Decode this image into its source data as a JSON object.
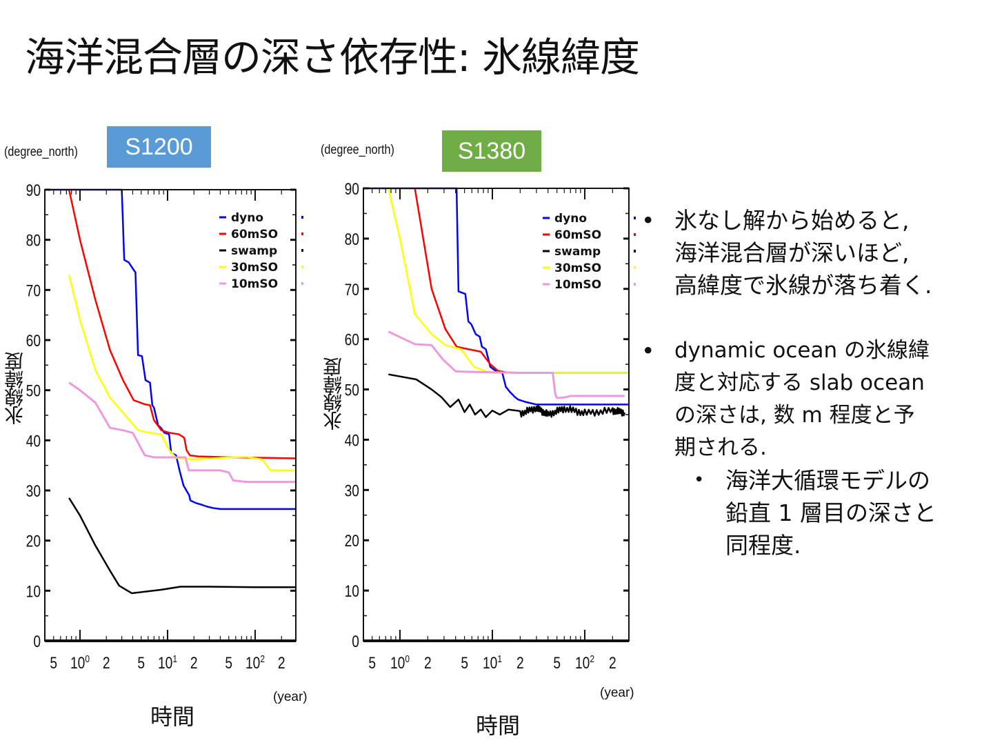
{
  "page": {
    "title": "海洋混合層の深さ依存性: 氷線緯度"
  },
  "colors": {
    "dyno": "#0000ff",
    "60mSO": "#ff0000",
    "swamp": "#000000",
    "30mSO": "#ffff00",
    "10mSO": "#ee99dd",
    "badge_s1200": "#5b9bd5",
    "badge_s1380": "#70ad47"
  },
  "bullets": [
    {
      "level": 1,
      "text": "氷なし解から始めると, 海洋混合層が深いほど, 高緯度で氷線が落ち着く.",
      "lines": [
        "氷なし解から始めると,",
        "海洋混合層が深いほど,",
        "高緯度で氷線が落ち着く."
      ]
    },
    {
      "level": 1,
      "text": "dynamic ocean の氷線緯度と対応する slab ocean の深さは, 数 m 程度と予期される.",
      "lines": [
        "dynamic ocean の氷線緯",
        "度と対応する slab ocean",
        "の深さは, 数 m 程度と予",
        "期される."
      ]
    },
    {
      "level": 2,
      "text": "海洋大循環モデルの鉛直 1 層目の深さと同程度.",
      "lines": [
        "海洋大循環モデルの",
        "鉛直 1 層目の深さと",
        "同程度."
      ]
    }
  ],
  "bullet_glyph": "•",
  "chart_data": [
    {
      "type": "line",
      "title": "S1200",
      "unit_label": "(degree_north)",
      "ylabel": "氷線緯度",
      "xlabel": "時間",
      "xunit": "(year)",
      "xscale": "log",
      "xlim": [
        0.4,
        300
      ],
      "ylim": [
        0,
        90
      ],
      "yticks": [
        0,
        10,
        20,
        30,
        40,
        50,
        60,
        70,
        80,
        90
      ],
      "xtick_labels": [
        {
          "value": 0.5,
          "label": "5"
        },
        {
          "value": 1,
          "label": "10",
          "sup": "0"
        },
        {
          "value": 2,
          "label": "2"
        },
        {
          "value": 5,
          "label": "5"
        },
        {
          "value": 10,
          "label": "10",
          "sup": "1"
        },
        {
          "value": 20,
          "label": "2"
        },
        {
          "value": 50,
          "label": "5"
        },
        {
          "value": 100,
          "label": "10",
          "sup": "2"
        },
        {
          "value": 200,
          "label": "2"
        }
      ],
      "legend": [
        "dyno",
        "60mSO",
        "swamp",
        "30mSO",
        "10mSO"
      ],
      "legend_position": "top-right",
      "series": [
        {
          "name": "dyno",
          "x": [
            0.4,
            3.0,
            3.2,
            3.6,
            4.1,
            4.3,
            4.6,
            5.1,
            5.6,
            6.3,
            6.7,
            7.0,
            7.8,
            8.4,
            9.2,
            10.4,
            11.0,
            12.5,
            13.7,
            15.2,
            16.4,
            17.7,
            18.2,
            21,
            24,
            28,
            33,
            36,
            40,
            55,
            300
          ],
          "y": [
            90,
            90,
            76,
            75.5,
            74,
            73.5,
            57,
            56.8,
            52,
            51.5,
            47,
            46.5,
            43,
            42.5,
            41.5,
            41.2,
            37.5,
            37,
            34,
            31,
            30,
            29,
            28,
            27.5,
            27.2,
            26.8,
            26.5,
            26.4,
            26.3,
            26.3,
            26.3
          ]
        },
        {
          "name": "60mSO",
          "x": [
            0.75,
            1.0,
            1.5,
            2.2,
            3.1,
            4.1,
            5.5,
            6.3,
            7.0,
            8.5,
            10.5,
            13.5,
            15.5,
            16.5,
            18,
            22,
            60,
            300
          ],
          "y": [
            90,
            80,
            68,
            58,
            52,
            48,
            47.2,
            47,
            44,
            42,
            41.5,
            41.2,
            40.5,
            38,
            37,
            36.8,
            36.6,
            36.4
          ]
        },
        {
          "name": "swamp",
          "x": [
            0.75,
            1.0,
            1.5,
            2.2,
            2.8,
            3.9,
            5.5,
            8.5,
            14,
            30,
            100,
            300
          ],
          "y": [
            28.5,
            25,
            19,
            14,
            11,
            9.5,
            9.8,
            10.2,
            10.8,
            10.8,
            10.7,
            10.7
          ]
        },
        {
          "name": "30mSO",
          "x": [
            0.75,
            1.0,
            1.5,
            2.2,
            3.1,
            4.6,
            6.3,
            8.4,
            10.5,
            12.5,
            20,
            50,
            80,
            120,
            150,
            300
          ],
          "y": [
            73,
            64,
            54,
            48.5,
            45.5,
            42,
            41.5,
            41.2,
            38,
            36.5,
            36.2,
            36.6,
            36.7,
            36.2,
            34,
            34
          ]
        },
        {
          "name": "10mSO",
          "x": [
            0.75,
            1.0,
            1.5,
            2.2,
            3.1,
            4.0,
            5.5,
            6.3,
            7.0,
            11,
            16,
            17.5,
            20,
            40,
            50,
            56,
            80,
            290
          ],
          "y": [
            51.5,
            50,
            47.5,
            42.5,
            42,
            41.5,
            37,
            36.8,
            36.6,
            36.6,
            36.6,
            34,
            34,
            34,
            33.6,
            32,
            31.7,
            31.7
          ]
        }
      ]
    },
    {
      "type": "line",
      "title": "S1380",
      "unit_label": "(degree_north)",
      "ylabel": "氷線緯度",
      "xlabel": "時間",
      "xunit": "(year)",
      "xscale": "log",
      "xlim": [
        0.4,
        300
      ],
      "ylim": [
        0,
        90
      ],
      "yticks": [
        0,
        10,
        20,
        30,
        40,
        50,
        60,
        70,
        80,
        90
      ],
      "xtick_labels": [
        {
          "value": 0.5,
          "label": "5"
        },
        {
          "value": 1,
          "label": "10",
          "sup": "0"
        },
        {
          "value": 2,
          "label": "2"
        },
        {
          "value": 5,
          "label": "5"
        },
        {
          "value": 10,
          "label": "10",
          "sup": "1"
        },
        {
          "value": 20,
          "label": "2"
        },
        {
          "value": 50,
          "label": "5"
        },
        {
          "value": 100,
          "label": "10",
          "sup": "2"
        },
        {
          "value": 200,
          "label": "2"
        }
      ],
      "legend": [
        "dyno",
        "60mSO",
        "swamp",
        "30mSO",
        "10mSO"
      ],
      "legend_position": "top-right",
      "series": [
        {
          "name": "dyno",
          "x": [
            0.4,
            4.1,
            4.3,
            5.1,
            5.5,
            5.9,
            6.6,
            7.3,
            7.7,
            8.5,
            9.5,
            10.3,
            11.2,
            12.8,
            14.0,
            15.5,
            16.5,
            17.5,
            19,
            23,
            30,
            40,
            300
          ],
          "y": [
            90,
            90,
            69.5,
            69,
            63.5,
            63,
            61,
            60.5,
            58.5,
            58,
            54.5,
            54,
            53.5,
            53.3,
            50.5,
            49.5,
            49,
            48.5,
            48,
            47.5,
            47,
            47,
            47
          ]
        },
        {
          "name": "60mSO",
          "x": [
            1.45,
            2.2,
            3.1,
            4.1,
            5.5,
            7.5,
            9.5,
            11.5,
            14,
            20,
            300
          ],
          "y": [
            90,
            70,
            62,
            58.5,
            58,
            57.5,
            55,
            53.7,
            53.4,
            53.3,
            53.3
          ]
        },
        {
          "name": "swamp",
          "x": [
            0.75,
            1.5,
            2.2,
            2.8,
            3.5,
            4.3,
            5.0,
            5.7,
            6.5,
            7.5,
            8.5,
            10,
            12,
            15,
            20,
            30,
            40,
            60,
            100,
            200,
            270
          ],
          "y": [
            53,
            52,
            50,
            48.5,
            46.5,
            48,
            45.5,
            47,
            45,
            46,
            44.5,
            45.8,
            45.0,
            46.0,
            45.2,
            46.3,
            45.0,
            46.2,
            45.3,
            45.8,
            45.4
          ]
        },
        {
          "name": "30mSO",
          "x": [
            0.75,
            1.0,
            1.45,
            2.2,
            3.1,
            4.6,
            6.3,
            8.5,
            11,
            20,
            300
          ],
          "y": [
            90,
            80,
            65,
            61,
            58.8,
            58,
            54.5,
            53.6,
            53.4,
            53.3,
            53.3
          ]
        },
        {
          "name": "10mSO",
          "x": [
            0.75,
            1.45,
            2.2,
            2.9,
            4.0,
            5.5,
            10,
            20,
            45,
            48,
            50,
            60,
            70,
            270
          ],
          "y": [
            61.5,
            59,
            58.8,
            56,
            53.6,
            53.5,
            53.4,
            53.3,
            53.3,
            49,
            48.3,
            48.4,
            48.7,
            48.7
          ]
        }
      ]
    }
  ]
}
